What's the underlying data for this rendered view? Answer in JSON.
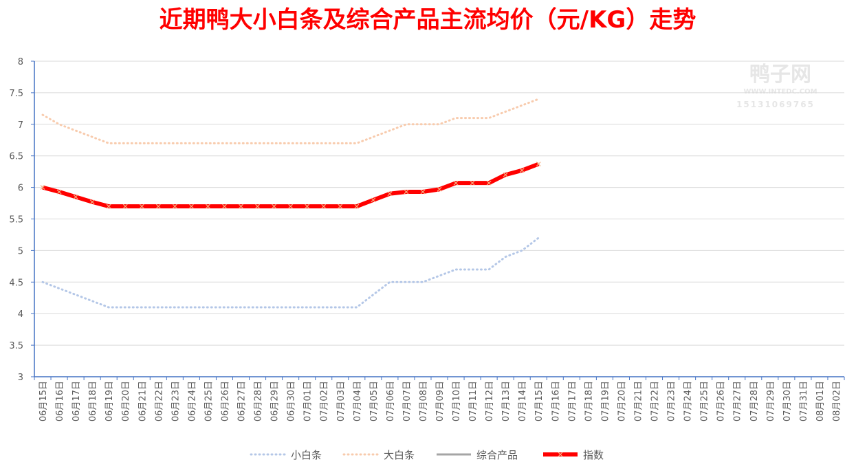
{
  "chart_data": {
    "type": "line",
    "title": "近期鸭大小白条及综合产品主流均价（元/KG）走势",
    "watermark": [
      "鸭子网",
      "WWW.INTEDC.COM",
      "15131069765"
    ],
    "categories": [
      "06月15日",
      "06月16日",
      "06月17日",
      "06月18日",
      "06月19日",
      "06月20日",
      "06月21日",
      "06月22日",
      "06月23日",
      "06月24日",
      "06月25日",
      "06月26日",
      "06月27日",
      "06月28日",
      "06月29日",
      "06月30日",
      "07月01日",
      "07月02日",
      "07月03日",
      "07月04日",
      "07月05日",
      "07月06日",
      "07月07日",
      "07月08日",
      "07月09日",
      "07月10日",
      "07月11日",
      "07月12日",
      "07月13日",
      "07月14日",
      "07月15日",
      "07月16日",
      "07月17日",
      "07月18日",
      "07月19日",
      "07月20日",
      "07月21日",
      "07月22日",
      "07月23日",
      "07月24日",
      "07月25日",
      "07月26日",
      "07月27日",
      "07月28日",
      "07月29日",
      "07月30日",
      "07月31日",
      "08月01日",
      "08月02日"
    ],
    "series": [
      {
        "name": "小白条",
        "color": "#b4c7e7",
        "style": "dotted",
        "values": [
          4.5,
          4.4,
          4.3,
          4.2,
          4.1,
          4.1,
          4.1,
          4.1,
          4.1,
          4.1,
          4.1,
          4.1,
          4.1,
          4.1,
          4.1,
          4.1,
          4.1,
          4.1,
          4.1,
          4.1,
          4.3,
          4.5,
          4.5,
          4.5,
          4.6,
          4.7,
          4.7,
          4.7,
          4.9,
          5.0,
          5.2,
          null,
          null,
          null,
          null,
          null,
          null,
          null,
          null,
          null,
          null,
          null,
          null,
          null,
          null,
          null,
          null,
          null,
          null
        ]
      },
      {
        "name": "大白条",
        "color": "#f8cbad",
        "style": "dotted",
        "values": [
          7.15,
          7.0,
          6.9,
          6.8,
          6.7,
          6.7,
          6.7,
          6.7,
          6.7,
          6.7,
          6.7,
          6.7,
          6.7,
          6.7,
          6.7,
          6.7,
          6.7,
          6.7,
          6.7,
          6.7,
          6.8,
          6.9,
          7.0,
          7.0,
          7.0,
          7.1,
          7.1,
          7.1,
          7.2,
          7.3,
          7.4,
          null,
          null,
          null,
          null,
          null,
          null,
          null,
          null,
          null,
          null,
          null,
          null,
          null,
          null,
          null,
          null,
          null,
          null
        ]
      },
      {
        "name": "综合产品",
        "color": "#a5a5a5",
        "style": "solid",
        "values": [
          6.0,
          5.93,
          5.85,
          5.77,
          5.7,
          5.7,
          5.7,
          5.7,
          5.7,
          5.7,
          5.7,
          5.7,
          5.7,
          5.7,
          5.7,
          5.7,
          5.7,
          5.7,
          5.7,
          5.7,
          5.8,
          5.9,
          5.93,
          5.93,
          5.97,
          6.07,
          6.07,
          6.07,
          6.2,
          6.27,
          6.37,
          null,
          null,
          null,
          null,
          null,
          null,
          null,
          null,
          null,
          null,
          null,
          null,
          null,
          null,
          null,
          null,
          null,
          null
        ]
      },
      {
        "name": "指数",
        "color": "#ff0000",
        "style": "thick",
        "marker": "x",
        "marker_color": "#f4b183",
        "values": [
          6.0,
          5.93,
          5.85,
          5.77,
          5.7,
          5.7,
          5.7,
          5.7,
          5.7,
          5.7,
          5.7,
          5.7,
          5.7,
          5.7,
          5.7,
          5.7,
          5.7,
          5.7,
          5.7,
          5.7,
          5.8,
          5.9,
          5.93,
          5.93,
          5.97,
          6.07,
          6.07,
          6.07,
          6.2,
          6.27,
          6.37,
          null,
          null,
          null,
          null,
          null,
          null,
          null,
          null,
          null,
          null,
          null,
          null,
          null,
          null,
          null,
          null,
          null,
          null
        ]
      }
    ],
    "ylim": [
      3,
      8
    ],
    "yticks": [
      3,
      3.5,
      4,
      4.5,
      5,
      5.5,
      6,
      6.5,
      7,
      7.5,
      8
    ],
    "grid": true,
    "legend": "bottom"
  }
}
